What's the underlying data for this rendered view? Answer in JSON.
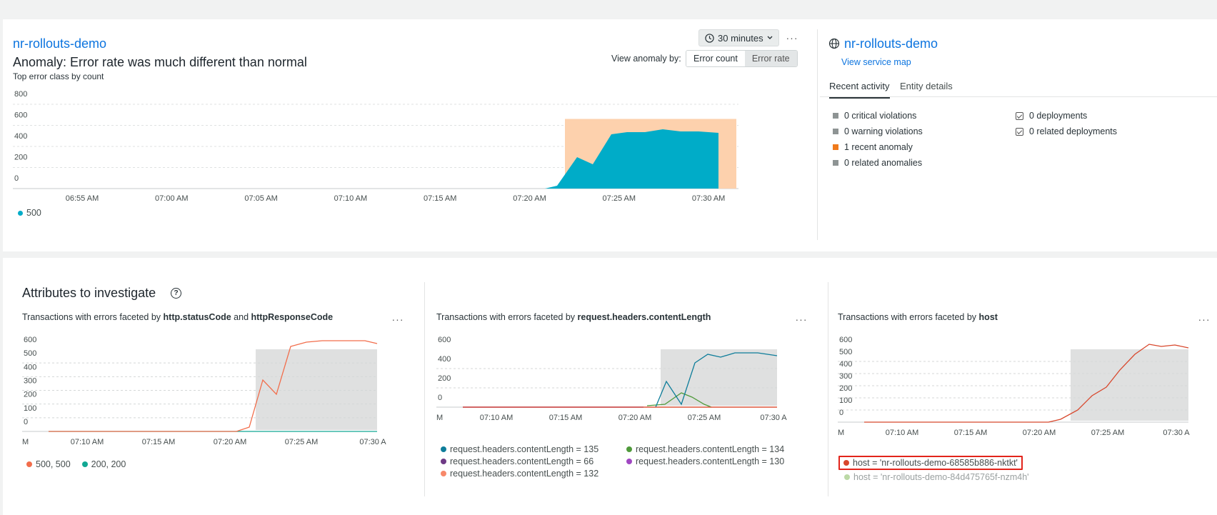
{
  "top": {
    "entity_name": "nr-rollouts-demo",
    "anomaly_title": "Anomaly: Error rate was much different than normal",
    "subtitle": "Top error class by count",
    "time_picker": "30 minutes",
    "view_anomaly_label": "View anomaly by:",
    "toggle": [
      "Error count",
      "Error rate"
    ],
    "more": "···"
  },
  "side": {
    "entity_name": "nr-rollouts-demo",
    "service_map_link": "View service map",
    "tabs": [
      "Recent activity",
      "Entity details"
    ],
    "stats_left": [
      {
        "label": "0 critical violations",
        "color": "#8e9494"
      },
      {
        "label": "0 warning violations",
        "color": "#8e9494"
      },
      {
        "label": "1 recent anomaly",
        "color": "#f07a1c"
      },
      {
        "label": "0 related anomalies",
        "color": "#8e9494"
      }
    ],
    "stats_right": [
      "0 deployments",
      "0 related deployments"
    ]
  },
  "main_chart": {
    "y_ticks": [
      "800",
      "600",
      "400",
      "200",
      "0"
    ],
    "x_ticks": [
      "06:55 AM",
      "07:00 AM",
      "07:05 AM",
      "07:10 AM",
      "07:15 AM",
      "07:20 AM",
      "07:25 AM",
      "07:30 AM"
    ],
    "legend": [
      "500"
    ],
    "series_color": "#00acc8",
    "anomaly_color": "#fdd1ad"
  },
  "attributes": {
    "title": "Attributes to investigate",
    "help_icon": "?",
    "facets": [
      {
        "title_parts": [
          "Transactions with errors faceted by ",
          "http.statusCode",
          " and ",
          "httpResponseCode"
        ],
        "y_ticks": [
          "600",
          "500",
          "400",
          "300",
          "200",
          "100",
          "0"
        ],
        "x_ticks": [
          "M",
          "07:10 AM",
          "07:15 AM",
          "07:20 AM",
          "07:25 AM",
          "07:30 A"
        ],
        "legend": [
          {
            "label": "500, 500",
            "color": "#f26d4b"
          },
          {
            "label": "200, 200",
            "color": "#11a893"
          }
        ]
      },
      {
        "title_parts": [
          "Transactions with errors faceted by ",
          "request.headers.contentLength"
        ],
        "y_ticks": [
          "600",
          "400",
          "200",
          "0"
        ],
        "x_ticks": [
          "M",
          "07:10 AM",
          "07:15 AM",
          "07:20 AM",
          "07:25 AM",
          "07:30 A"
        ],
        "legend": [
          {
            "label": "request.headers.contentLength = 135",
            "color": "#0e7d9a"
          },
          {
            "label": "request.headers.contentLength = 134",
            "color": "#4f9a3b"
          },
          {
            "label": "request.headers.contentLength = 66",
            "color": "#6f3b86"
          },
          {
            "label": "request.headers.contentLength = 130",
            "color": "#a047c2"
          },
          {
            "label": "request.headers.contentLength = 132",
            "color": "#f7886a"
          }
        ]
      },
      {
        "title_parts": [
          "Transactions with errors faceted by ",
          "host"
        ],
        "y_ticks": [
          "600",
          "500",
          "400",
          "300",
          "200",
          "100",
          "0"
        ],
        "x_ticks": [
          "M",
          "07:10 AM",
          "07:15 AM",
          "07:20 AM",
          "07:25 AM",
          "07:30 A"
        ],
        "legend": [
          {
            "label": "host = 'nr-rollouts-demo-68585b886-nktkt'",
            "color": "#d8472c"
          },
          {
            "label": "host = 'nr-rollouts-demo-84d475765f-nzm4h'",
            "color": "#8fbf6a"
          }
        ]
      }
    ]
  }
}
